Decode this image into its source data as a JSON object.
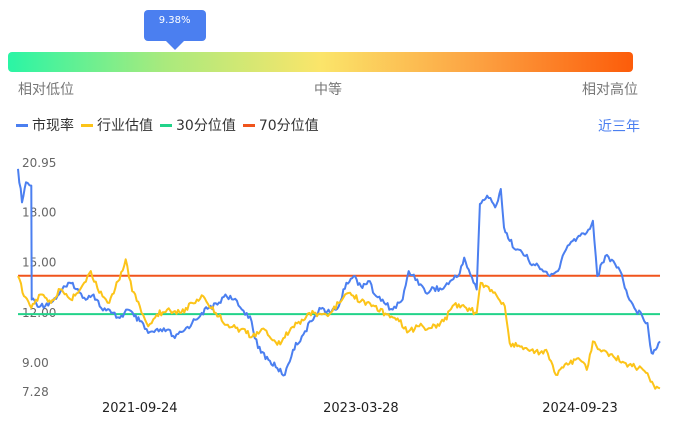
{
  "percentile_indicator": {
    "value_label": "9.38%",
    "value": 0.0938
  },
  "colors": {
    "accent": "#4b7ff0",
    "pe_line": "#4b7ff0",
    "industry_line": "#fcc419",
    "p30_line": "#22d38a",
    "p70_line": "#f0541c",
    "gradient": [
      "#2af5a5",
      "#fbe56a",
      "#fc5c0a"
    ]
  },
  "scale_labels": {
    "low": "相对低位",
    "mid": "中等",
    "high": "相对高位"
  },
  "legend": {
    "items": [
      {
        "label": "市现率",
        "color": "#4b7ff0"
      },
      {
        "label": "行业估值",
        "color": "#fcc419"
      },
      {
        "label": "30分位值",
        "color": "#22d38a"
      },
      {
        "label": "70分位值",
        "color": "#f0541c"
      }
    ],
    "range_label": "近三年"
  },
  "chart_data": {
    "type": "line",
    "ylim": [
      7.28,
      20.95
    ],
    "y_ticks": [
      "20.95",
      "18.00",
      "15.00",
      "12.00",
      "9.00",
      "7.28"
    ],
    "y_tick_values": [
      20.95,
      18.0,
      15.0,
      12.0,
      9.0,
      7.28
    ],
    "x_range": [
      "2020-11-25",
      "2025-04-10"
    ],
    "x_ticks": [
      "2021-09-24",
      "2023-03-28",
      "2024-09-23"
    ],
    "series": [
      {
        "name": "市现率",
        "color": "#4b7ff0",
        "points": [
          [
            "2020-11-25",
            20.6
          ],
          [
            "2020-12-05",
            18.6
          ],
          [
            "2020-12-15",
            19.8
          ],
          [
            "2020-12-28",
            19.6
          ],
          [
            "2020-12-29",
            12.8
          ],
          [
            "2021-01-20",
            12.4
          ],
          [
            "2021-02-20",
            12.7
          ],
          [
            "2021-03-15",
            13.4
          ],
          [
            "2021-04-10",
            13.8
          ],
          [
            "2021-05-05",
            12.9
          ],
          [
            "2021-06-01",
            13.1
          ],
          [
            "2021-06-20",
            12.3
          ],
          [
            "2021-07-15",
            12.0
          ],
          [
            "2021-08-05",
            11.7
          ],
          [
            "2021-08-25",
            12.2
          ],
          [
            "2021-09-10",
            11.8
          ],
          [
            "2021-09-24",
            11.5
          ],
          [
            "2021-10-15",
            10.8
          ],
          [
            "2021-11-10",
            10.9
          ],
          [
            "2021-12-01",
            11.0
          ],
          [
            "2021-12-20",
            10.5
          ],
          [
            "2022-01-10",
            10.9
          ],
          [
            "2022-02-01",
            11.4
          ],
          [
            "2022-02-25",
            12.0
          ],
          [
            "2022-03-15",
            12.3
          ],
          [
            "2022-04-05",
            12.5
          ],
          [
            "2022-04-25",
            13.1
          ],
          [
            "2022-05-15",
            12.8
          ],
          [
            "2022-06-05",
            12.2
          ],
          [
            "2022-06-25",
            11.8
          ],
          [
            "2022-07-15",
            9.9
          ],
          [
            "2022-08-10",
            9.2
          ],
          [
            "2022-09-01",
            8.7
          ],
          [
            "2022-09-20",
            8.3
          ],
          [
            "2022-10-10",
            9.8
          ],
          [
            "2022-11-01",
            10.6
          ],
          [
            "2022-11-25",
            11.5
          ],
          [
            "2022-12-15",
            12.3
          ],
          [
            "2023-01-10",
            12.0
          ],
          [
            "2023-02-01",
            12.4
          ],
          [
            "2023-02-20",
            13.8
          ],
          [
            "2023-03-10",
            14.2
          ],
          [
            "2023-03-28",
            13.6
          ],
          [
            "2023-04-15",
            13.9
          ],
          [
            "2023-05-05",
            13.0
          ],
          [
            "2023-05-25",
            12.6
          ],
          [
            "2023-06-15",
            12.2
          ],
          [
            "2023-07-10",
            12.8
          ],
          [
            "2023-07-25",
            14.5
          ],
          [
            "2023-08-15",
            14.0
          ],
          [
            "2023-09-05",
            13.2
          ],
          [
            "2023-09-25",
            13.5
          ],
          [
            "2023-10-15",
            13.4
          ],
          [
            "2023-11-05",
            13.9
          ],
          [
            "2023-11-25",
            14.2
          ],
          [
            "2023-12-10",
            15.3
          ],
          [
            "2023-12-25",
            14.3
          ],
          [
            "2024-01-10",
            13.4
          ],
          [
            "2024-01-18",
            18.5
          ],
          [
            "2024-02-05",
            19.0
          ],
          [
            "2024-02-25",
            18.3
          ],
          [
            "2024-03-10",
            19.4
          ],
          [
            "2024-03-18",
            17.1
          ],
          [
            "2024-04-01",
            16.3
          ],
          [
            "2024-04-20",
            15.8
          ],
          [
            "2024-05-10",
            15.4
          ],
          [
            "2024-05-30",
            14.9
          ],
          [
            "2024-06-20",
            14.6
          ],
          [
            "2024-07-10",
            14.2
          ],
          [
            "2024-07-30",
            14.5
          ],
          [
            "2024-08-15",
            15.6
          ],
          [
            "2024-09-05",
            16.3
          ],
          [
            "2024-09-23",
            16.6
          ],
          [
            "2024-10-10",
            16.8
          ],
          [
            "2024-10-25",
            17.5
          ],
          [
            "2024-11-05",
            14.2
          ],
          [
            "2024-11-25",
            15.4
          ],
          [
            "2024-12-15",
            15.1
          ],
          [
            "2025-01-05",
            14.3
          ],
          [
            "2025-01-20",
            13.0
          ],
          [
            "2025-02-05",
            12.3
          ],
          [
            "2025-02-25",
            11.8
          ],
          [
            "2025-03-10",
            11.4
          ],
          [
            "2025-03-20",
            9.6
          ],
          [
            "2025-03-30",
            9.8
          ],
          [
            "2025-04-10",
            10.3
          ]
        ]
      },
      {
        "name": "行业估值",
        "color": "#fcc419",
        "points": [
          [
            "2020-11-25",
            14.2
          ],
          [
            "2020-12-10",
            13.0
          ],
          [
            "2020-12-28",
            12.3
          ],
          [
            "2021-01-20",
            13.1
          ],
          [
            "2021-02-15",
            12.6
          ],
          [
            "2021-03-10",
            13.4
          ],
          [
            "2021-04-05",
            12.8
          ],
          [
            "2021-05-01",
            13.5
          ],
          [
            "2021-05-25",
            14.5
          ],
          [
            "2021-06-15",
            13.2
          ],
          [
            "2021-07-10",
            12.6
          ],
          [
            "2021-08-01",
            13.9
          ],
          [
            "2021-08-20",
            15.2
          ],
          [
            "2021-09-05",
            13.3
          ],
          [
            "2021-09-24",
            12.4
          ],
          [
            "2021-10-15",
            11.2
          ],
          [
            "2021-11-05",
            11.9
          ],
          [
            "2021-12-01",
            12.2
          ],
          [
            "2022-01-05",
            12.0
          ],
          [
            "2022-02-01",
            12.6
          ],
          [
            "2022-03-01",
            13.0
          ],
          [
            "2022-04-01",
            12.0
          ],
          [
            "2022-05-01",
            11.3
          ],
          [
            "2022-06-01",
            11.0
          ],
          [
            "2022-07-01",
            10.6
          ],
          [
            "2022-08-01",
            11.0
          ],
          [
            "2022-09-01",
            10.1
          ],
          [
            "2022-10-01",
            10.9
          ],
          [
            "2022-11-01",
            11.6
          ],
          [
            "2022-12-01",
            12.0
          ],
          [
            "2023-01-01",
            11.9
          ],
          [
            "2023-02-01",
            12.6
          ],
          [
            "2023-03-01",
            13.2
          ],
          [
            "2023-03-28",
            12.7
          ],
          [
            "2023-05-01",
            12.4
          ],
          [
            "2023-06-01",
            11.9
          ],
          [
            "2023-07-01",
            11.5
          ],
          [
            "2023-07-25",
            10.9
          ],
          [
            "2023-08-20",
            11.2
          ],
          [
            "2023-09-20",
            11.1
          ],
          [
            "2023-10-20",
            11.5
          ],
          [
            "2023-11-15",
            12.5
          ],
          [
            "2023-12-15",
            12.3
          ],
          [
            "2024-01-10",
            12.0
          ],
          [
            "2024-01-20",
            13.8
          ],
          [
            "2024-02-20",
            13.2
          ],
          [
            "2024-03-20",
            12.4
          ],
          [
            "2024-04-01",
            10.2
          ],
          [
            "2024-05-01",
            10.0
          ],
          [
            "2024-06-01",
            9.6
          ],
          [
            "2024-07-01",
            9.8
          ],
          [
            "2024-07-25",
            8.3
          ],
          [
            "2024-08-20",
            9.0
          ],
          [
            "2024-09-23",
            9.2
          ],
          [
            "2024-10-10",
            8.6
          ],
          [
            "2024-10-25",
            10.3
          ],
          [
            "2024-11-15",
            9.7
          ],
          [
            "2024-12-15",
            9.4
          ],
          [
            "2025-01-15",
            9.0
          ],
          [
            "2025-02-15",
            8.7
          ],
          [
            "2025-03-10",
            8.4
          ],
          [
            "2025-03-25",
            7.7
          ],
          [
            "2025-04-10",
            7.5
          ]
        ]
      },
      {
        "name": "30分位值",
        "color": "#22d38a",
        "value": 11.93
      },
      {
        "name": "70分位值",
        "color": "#f0541c",
        "value": 14.22
      }
    ]
  }
}
